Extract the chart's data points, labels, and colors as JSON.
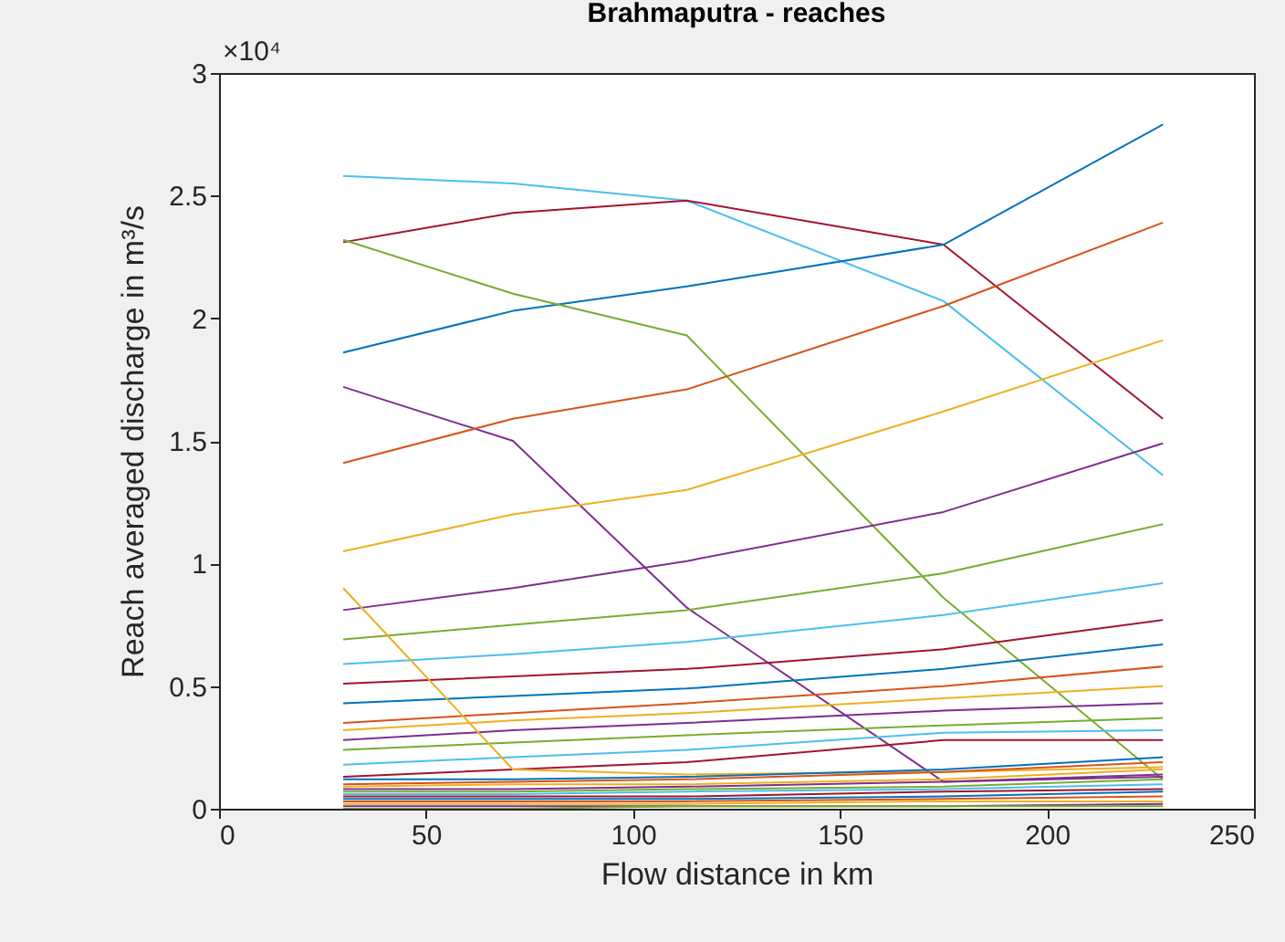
{
  "chart_data": {
    "type": "line",
    "title": "Brahmaputra - reaches",
    "xlabel": "Flow distance in km",
    "ylabel": "Reach averaged discharge in m³/s",
    "annotations": [
      "×10⁴"
    ],
    "x": [
      30,
      71,
      113,
      175,
      228
    ],
    "xlim": [
      0,
      250
    ],
    "xticks": [
      0,
      50,
      100,
      150,
      200,
      250
    ],
    "ylim": [
      0,
      3
    ],
    "yticks": [
      0,
      0.5,
      1,
      1.5,
      2,
      2.5,
      3
    ],
    "grid": false,
    "legend": false,
    "series": [
      {
        "color": "#4dbeee",
        "values": [
          2.58,
          2.55,
          2.48,
          2.07,
          1.36
        ]
      },
      {
        "color": "#a2142f",
        "values": [
          2.31,
          2.43,
          2.48,
          2.3,
          1.59
        ]
      },
      {
        "color": "#0072bd",
        "values": [
          1.86,
          2.03,
          2.13,
          2.3,
          2.79
        ]
      },
      {
        "color": "#77ac30",
        "values": [
          2.32,
          2.1,
          1.93,
          0.86,
          0.12
        ]
      },
      {
        "color": "#7e2f8e",
        "values": [
          1.72,
          1.5,
          0.82,
          0.11,
          0.13
        ]
      },
      {
        "color": "#d95319",
        "values": [
          1.41,
          1.59,
          1.71,
          2.05,
          2.39
        ]
      },
      {
        "color": "#edb120",
        "values": [
          1.05,
          1.2,
          1.3,
          1.62,
          1.91
        ]
      },
      {
        "color": "#7e2f8e",
        "values": [
          0.81,
          0.9,
          1.01,
          1.21,
          1.49
        ]
      },
      {
        "color": "#77ac30",
        "values": [
          0.69,
          0.75,
          0.81,
          0.96,
          1.16
        ]
      },
      {
        "color": "#4dbeee",
        "values": [
          0.59,
          0.63,
          0.68,
          0.79,
          0.92
        ]
      },
      {
        "color": "#a2142f",
        "values": [
          0.51,
          0.54,
          0.57,
          0.65,
          0.77
        ]
      },
      {
        "color": "#0072bd",
        "values": [
          0.43,
          0.46,
          0.49,
          0.57,
          0.67
        ]
      },
      {
        "color": "#d95319",
        "values": [
          0.35,
          0.39,
          0.43,
          0.5,
          0.58
        ]
      },
      {
        "color": "#edb120",
        "values": [
          0.32,
          0.36,
          0.39,
          0.45,
          0.5
        ]
      },
      {
        "color": "#7e2f8e",
        "values": [
          0.28,
          0.32,
          0.35,
          0.4,
          0.43
        ]
      },
      {
        "color": "#77ac30",
        "values": [
          0.24,
          0.27,
          0.3,
          0.34,
          0.37
        ]
      },
      {
        "color": "#4dbeee",
        "values": [
          0.18,
          0.21,
          0.24,
          0.31,
          0.32
        ]
      },
      {
        "color": "#a2142f",
        "values": [
          0.13,
          0.16,
          0.19,
          0.28,
          0.28
        ]
      },
      {
        "color": "#edb120",
        "values": [
          0.9,
          0.16,
          0.14,
          0.15,
          0.17
        ]
      },
      {
        "color": "#0072bd",
        "values": [
          0.12,
          0.12,
          0.13,
          0.16,
          0.21
        ]
      },
      {
        "color": "#d95319",
        "values": [
          0.1,
          0.11,
          0.12,
          0.15,
          0.19
        ]
      },
      {
        "color": "#edb120",
        "values": [
          0.09,
          0.1,
          0.1,
          0.12,
          0.16
        ]
      },
      {
        "color": "#7e2f8e",
        "values": [
          0.08,
          0.08,
          0.09,
          0.11,
          0.14
        ]
      },
      {
        "color": "#77ac30",
        "values": [
          0.07,
          0.07,
          0.08,
          0.09,
          0.12
        ]
      },
      {
        "color": "#4dbeee",
        "values": [
          0.06,
          0.06,
          0.07,
          0.08,
          0.1
        ]
      },
      {
        "color": "#a2142f",
        "values": [
          0.05,
          0.05,
          0.05,
          0.07,
          0.08
        ]
      },
      {
        "color": "#0072bd",
        "values": [
          0.04,
          0.04,
          0.04,
          0.05,
          0.07
        ]
      },
      {
        "color": "#d95319",
        "values": [
          0.03,
          0.03,
          0.03,
          0.04,
          0.05
        ]
      },
      {
        "color": "#edb120",
        "values": [
          0.02,
          0.02,
          0.02,
          0.03,
          0.03
        ]
      },
      {
        "color": "#7e2f8e",
        "values": [
          0.01,
          0.01,
          0.01,
          0.01,
          0.02
        ]
      },
      {
        "color": "#77ac30",
        "values": [
          0,
          0,
          0.01,
          0.01,
          0.01
        ]
      }
    ]
  }
}
